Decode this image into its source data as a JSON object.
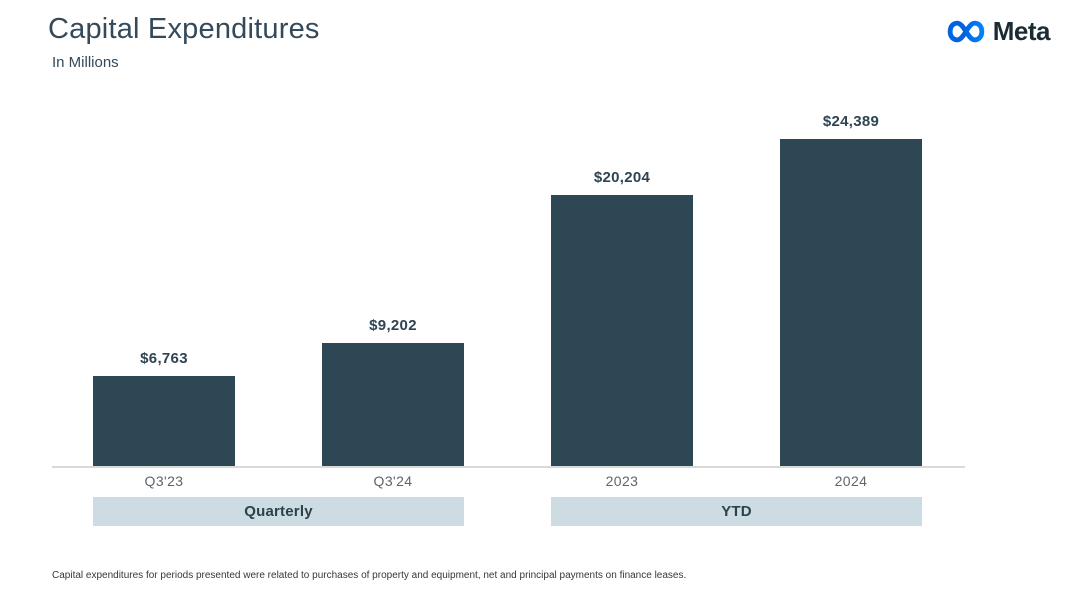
{
  "header": {
    "title": "Capital Expenditures",
    "subtitle": "In Millions",
    "brand": "Meta"
  },
  "chart_data": {
    "type": "bar",
    "title": "Capital Expenditures",
    "units_label": "In Millions",
    "categories": [
      "Q3'23",
      "Q3'24",
      "2023",
      "2024"
    ],
    "values": [
      6763,
      9202,
      20204,
      24389
    ],
    "value_labels": [
      "$6,763",
      "$9,202",
      "$20,204",
      "$24,389"
    ],
    "groups": [
      {
        "label": "Quarterly",
        "categories": [
          "Q3'23",
          "Q3'24"
        ]
      },
      {
        "label": "YTD",
        "categories": [
          "2023",
          "2024"
        ]
      }
    ],
    "ylim": [
      0,
      26000
    ],
    "grid": false,
    "legend_position": "none",
    "bar_color": "#2E4754",
    "band_color": "#CDDCE2"
  },
  "footnote": "Capital expenditures for periods presented were related to purchases of property and equipment, net and principal payments on finance leases.",
  "colors": {
    "title_text": "#34495A",
    "value_label_text": "#2E4453",
    "tick_text": "#5C666D",
    "axis_line": "#D9D9D9",
    "brand_text": "#1C2B33",
    "logo_blue_dark": "#0064E0",
    "logo_blue_light": "#0082FB"
  }
}
